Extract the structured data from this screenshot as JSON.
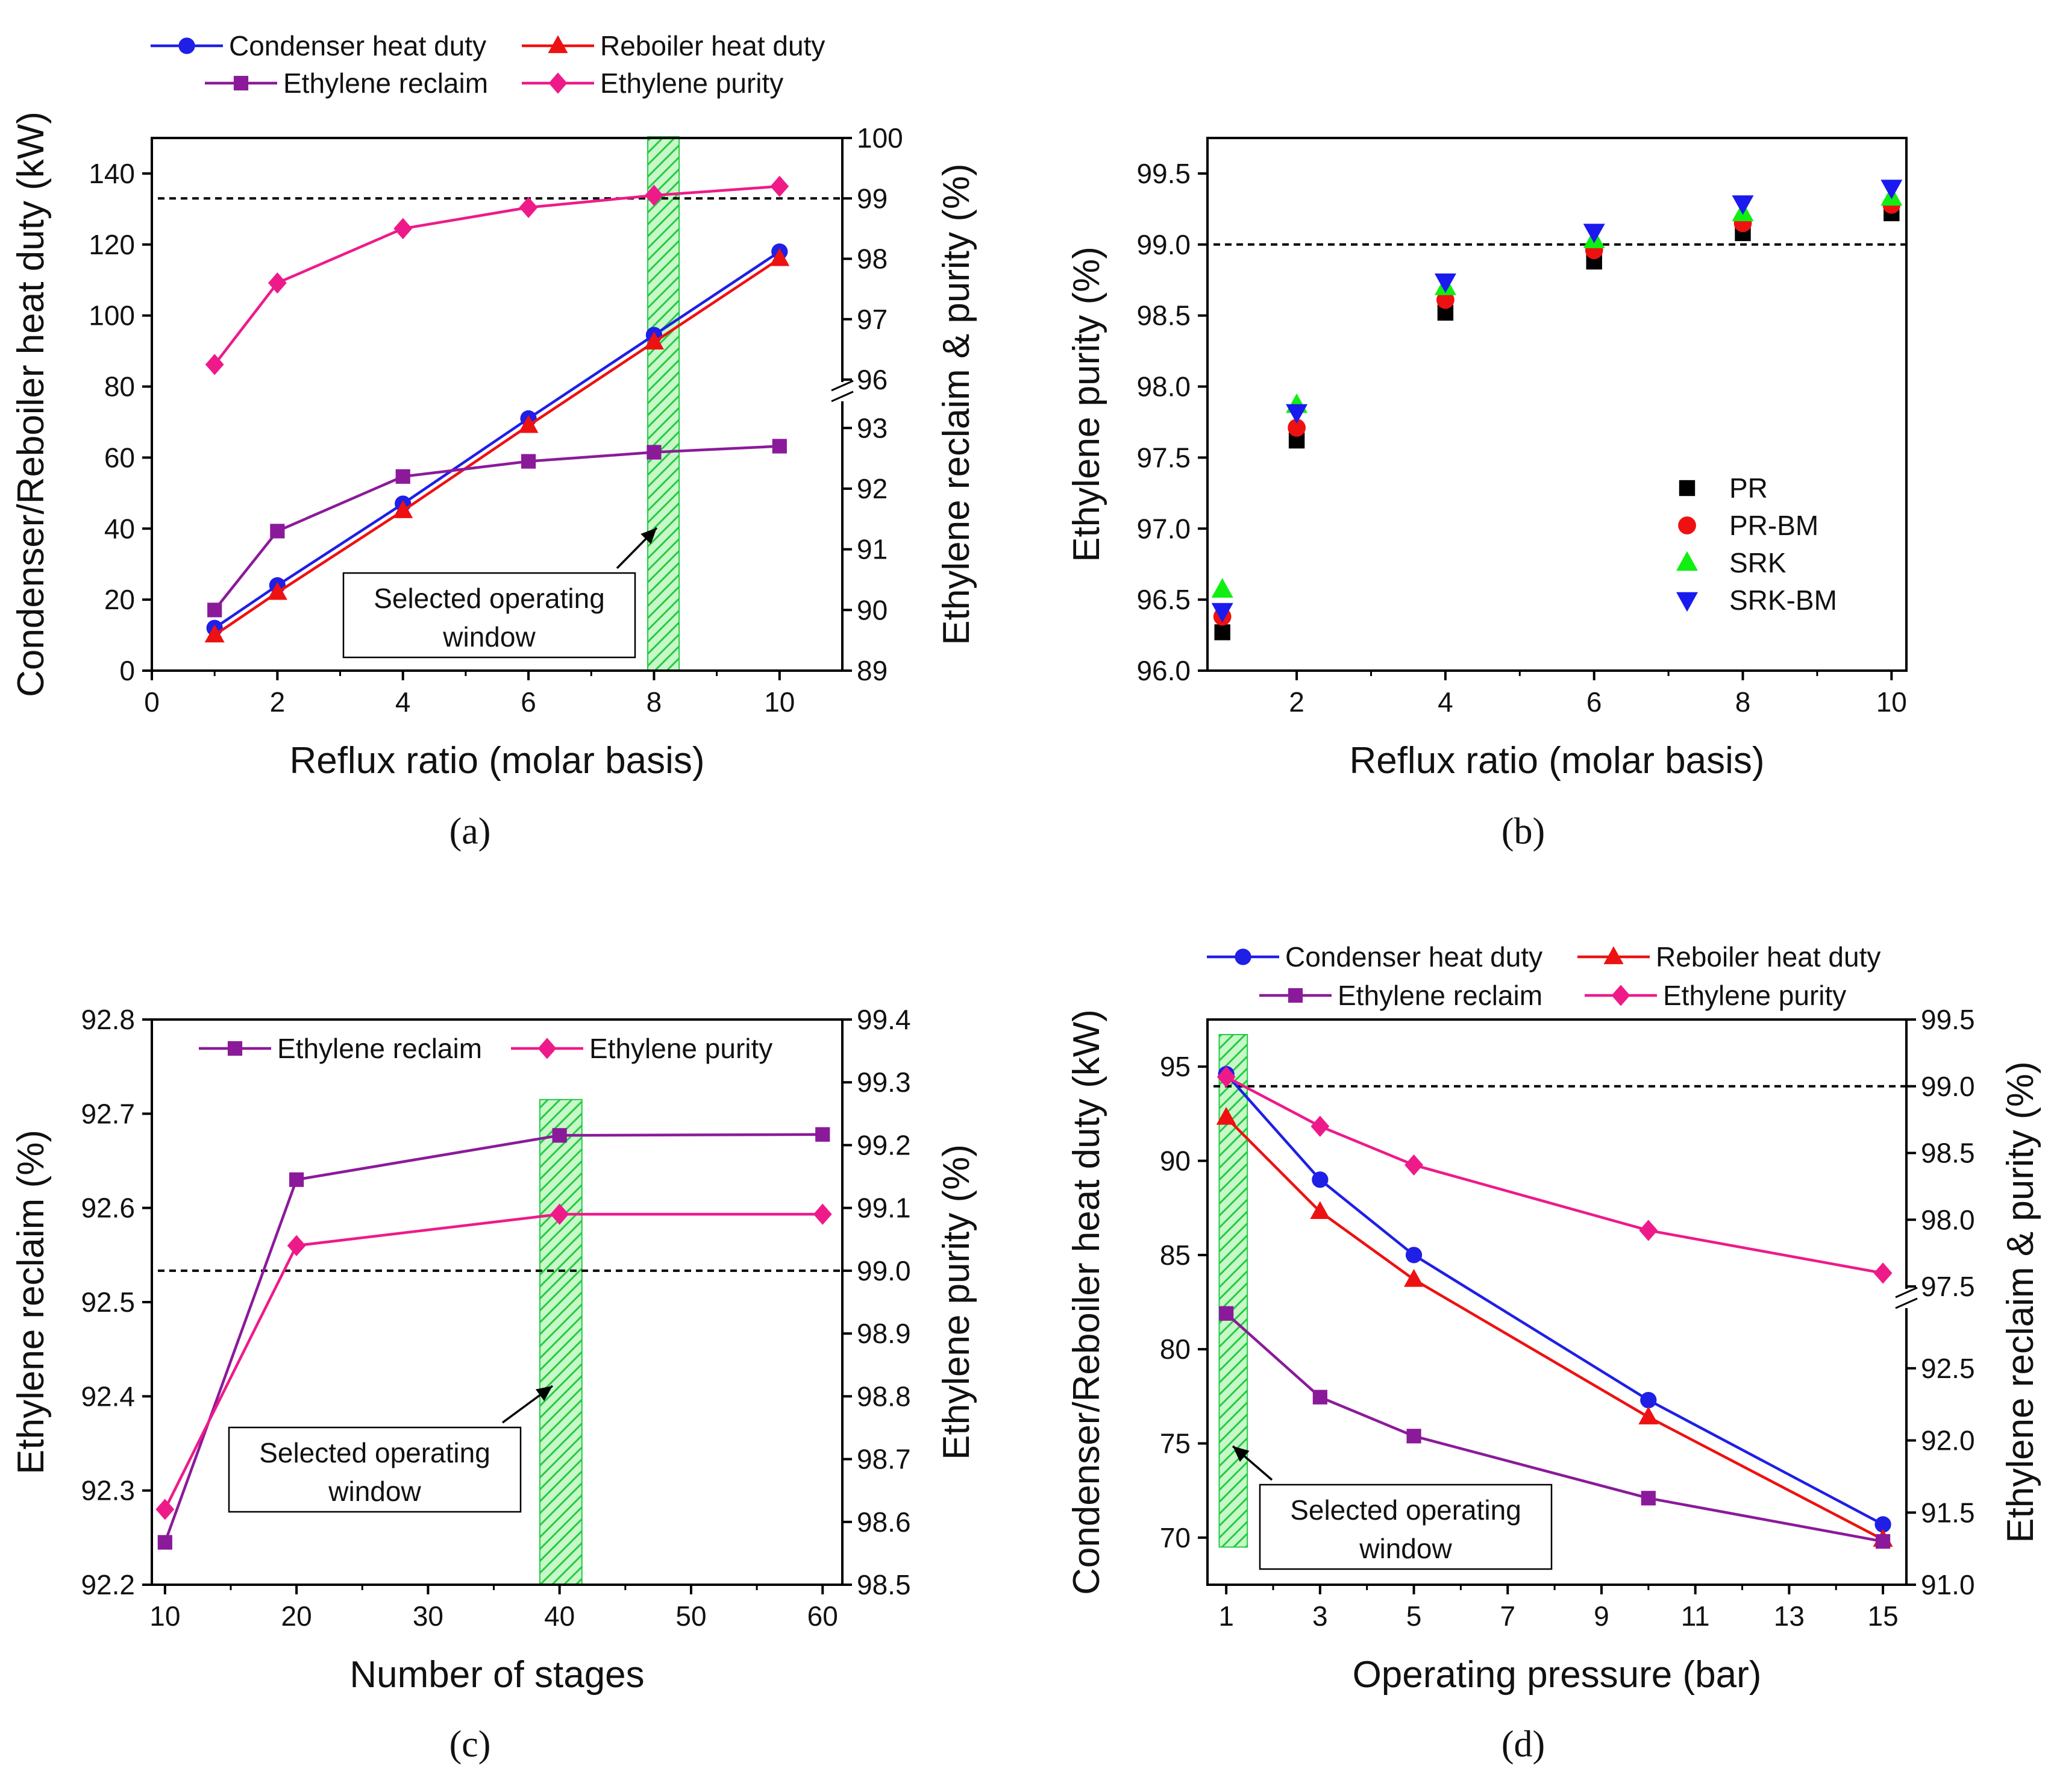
{
  "chart_data": [
    {
      "id": "a",
      "panel_label": "(a)",
      "type": "line",
      "xlabel": "Reflux ratio (molar basis)",
      "ylabel": "Condenser/Reboiler heat duty (kW)",
      "y2label": "Ethylene reclaim & purity (%)",
      "xlim": [
        0,
        11
      ],
      "xticks": [
        0,
        2,
        4,
        6,
        8,
        10
      ],
      "ylim": [
        0,
        150
      ],
      "yticks": [
        0,
        20,
        40,
        60,
        80,
        100,
        120,
        140
      ],
      "y2_break": true,
      "y2_lower": {
        "range": [
          89,
          93.4
        ],
        "ticks": [
          89,
          90,
          91,
          92,
          93
        ]
      },
      "y2_upper": {
        "range": [
          96,
          100
        ],
        "ticks": [
          96,
          97,
          98,
          99,
          100
        ]
      },
      "reference_line": {
        "axis": "y2_upper",
        "value": 99
      },
      "highlight": {
        "x": [
          7.9,
          8.4
        ],
        "axis": "x"
      },
      "annotation": {
        "lines": [
          "Selected operating",
          "window"
        ]
      },
      "legend": [
        {
          "name": "Condenser heat duty",
          "color": "#1f1fe6",
          "marker": "circle"
        },
        {
          "name": "Reboiler heat duty",
          "color": "#ee1111",
          "marker": "triangle-up"
        },
        {
          "name": "Ethylene reclaim",
          "color": "#8b1a9a",
          "marker": "square"
        },
        {
          "name": "Ethylene purity",
          "color": "#ee1a8a",
          "marker": "diamond"
        }
      ],
      "series": [
        {
          "name": "Condenser heat duty",
          "axis": "y",
          "color": "#1f1fe6",
          "marker": "circle",
          "x": [
            1,
            2,
            4,
            6,
            8,
            10
          ],
          "values": [
            12,
            24,
            47,
            71,
            94.5,
            118
          ]
        },
        {
          "name": "Reboiler heat duty",
          "axis": "y",
          "color": "#ee1111",
          "marker": "triangle-up",
          "x": [
            1,
            2,
            4,
            6,
            8,
            10
          ],
          "values": [
            10,
            22,
            45,
            69,
            92.5,
            116
          ]
        },
        {
          "name": "Ethylene reclaim",
          "axis": "y2_lower",
          "color": "#8b1a9a",
          "marker": "square",
          "x": [
            1,
            2,
            4,
            6,
            8,
            10
          ],
          "values": [
            90.0,
            91.3,
            92.2,
            92.45,
            92.6,
            92.7
          ]
        },
        {
          "name": "Ethylene purity",
          "axis": "y2_upper",
          "color": "#ee1a8a",
          "marker": "diamond",
          "x": [
            1,
            2,
            4,
            6,
            8,
            10
          ],
          "values": [
            96.25,
            97.6,
            98.5,
            98.85,
            99.05,
            99.2
          ]
        }
      ]
    },
    {
      "id": "b",
      "panel_label": "(b)",
      "type": "scatter",
      "xlabel": "Reflux ratio (molar basis)",
      "ylabel": "Ethylene purity (%)",
      "xlim": [
        0.8,
        10.2
      ],
      "xticks": [
        2,
        4,
        6,
        8,
        10
      ],
      "ylim": [
        96.0,
        99.75
      ],
      "yticks": [
        96.0,
        96.5,
        97.0,
        97.5,
        98.0,
        98.5,
        99.0,
        99.5
      ],
      "reference_line": {
        "axis": "y",
        "value": 99.0
      },
      "legend": [
        {
          "name": "PR",
          "color": "#000000",
          "marker": "square"
        },
        {
          "name": "PR-BM",
          "color": "#ee1111",
          "marker": "circle"
        },
        {
          "name": "SRK",
          "color": "#11ee11",
          "marker": "triangle-up"
        },
        {
          "name": "SRK-BM",
          "color": "#1a1aee",
          "marker": "triangle-down"
        }
      ],
      "series": [
        {
          "name": "PR",
          "color": "#000000",
          "marker": "square",
          "x": [
            1,
            2,
            4,
            6,
            8,
            10
          ],
          "values": [
            96.27,
            97.62,
            98.52,
            98.88,
            99.08,
            99.22
          ]
        },
        {
          "name": "PR-BM",
          "color": "#ee1111",
          "marker": "circle",
          "x": [
            1,
            2,
            4,
            6,
            8,
            10
          ],
          "values": [
            96.38,
            97.71,
            98.61,
            98.96,
            99.15,
            99.28
          ]
        },
        {
          "name": "SRK",
          "color": "#11ee11",
          "marker": "triangle-up",
          "x": [
            1,
            2,
            4,
            6,
            8,
            10
          ],
          "values": [
            96.57,
            97.87,
            98.7,
            99.03,
            99.22,
            99.33
          ]
        },
        {
          "name": "SRK-BM",
          "color": "#1a1aee",
          "marker": "triangle-down",
          "x": [
            1,
            2,
            4,
            6,
            8,
            10
          ],
          "values": [
            96.42,
            97.82,
            98.74,
            99.09,
            99.29,
            99.4
          ]
        }
      ]
    },
    {
      "id": "c",
      "panel_label": "(c)",
      "type": "line",
      "xlabel": "Number of stages",
      "ylabel": "Ethylene reclaim (%)",
      "y2label": "Ethylene purity (%)",
      "xlim": [
        9,
        61.5
      ],
      "xticks": [
        10,
        20,
        30,
        40,
        50,
        60
      ],
      "ylim": [
        92.2,
        92.8
      ],
      "yticks": [
        92.2,
        92.3,
        92.4,
        92.5,
        92.6,
        92.7,
        92.8
      ],
      "y2lim": [
        98.5,
        99.4
      ],
      "y2ticks": [
        98.5,
        98.6,
        98.7,
        98.8,
        98.9,
        99.0,
        99.1,
        99.2,
        99.3,
        99.4
      ],
      "reference_line": {
        "axis": "y2",
        "value": 99.0
      },
      "highlight": {
        "x": [
          38.5,
          41.7
        ],
        "y": [
          92.2,
          92.715
        ]
      },
      "annotation": {
        "lines": [
          "Selected operating",
          "window"
        ]
      },
      "legend": [
        {
          "name": "Ethylene reclaim",
          "color": "#8b1a9a",
          "marker": "square"
        },
        {
          "name": "Ethylene purity",
          "color": "#ee1a8a",
          "marker": "diamond"
        }
      ],
      "series": [
        {
          "name": "Ethylene reclaim",
          "axis": "y",
          "color": "#8b1a9a",
          "marker": "square",
          "x": [
            10,
            20,
            40,
            60
          ],
          "values": [
            92.245,
            92.63,
            92.677,
            92.678
          ]
        },
        {
          "name": "Ethylene purity",
          "axis": "y2",
          "color": "#ee1a8a",
          "marker": "diamond",
          "x": [
            10,
            20,
            40,
            60
          ],
          "values": [
            98.62,
            99.04,
            99.09,
            99.09
          ]
        }
      ]
    },
    {
      "id": "d",
      "panel_label": "(d)",
      "type": "line",
      "xlabel": "Operating pressure (bar)",
      "ylabel": "Condenser/Reboiler heat duty (kW)",
      "y2label": "Ethylene reclaim & purity (%)",
      "xlim": [
        0.6,
        15.5
      ],
      "xticks": [
        1,
        3,
        5,
        7,
        9,
        11,
        13,
        15
      ],
      "ylim": [
        67.5,
        97.5
      ],
      "yticks": [
        70,
        75,
        80,
        85,
        90,
        95
      ],
      "y2_break": true,
      "y2_lower": {
        "range": [
          91.0,
          92.9
        ],
        "ticks": [
          91.0,
          91.5,
          92.0,
          92.5
        ]
      },
      "y2_upper": {
        "range": [
          97.5,
          99.5
        ],
        "ticks": [
          97.5,
          98.0,
          98.5,
          99.0,
          99.5
        ]
      },
      "reference_line": {
        "axis": "y2_upper",
        "value": 99.0
      },
      "highlight": {
        "x": [
          0.85,
          1.45
        ],
        "y": [
          69.5,
          96.7
        ]
      },
      "annotation": {
        "lines": [
          "Selected operating",
          "window"
        ]
      },
      "legend": [
        {
          "name": "Condenser heat duty",
          "color": "#1f1fe6",
          "marker": "circle"
        },
        {
          "name": "Reboiler heat duty",
          "color": "#ee1111",
          "marker": "triangle-up"
        },
        {
          "name": "Ethylene reclaim",
          "color": "#8b1a9a",
          "marker": "square"
        },
        {
          "name": "Ethylene purity",
          "color": "#ee1a8a",
          "marker": "diamond"
        }
      ],
      "series": [
        {
          "name": "Condenser heat duty",
          "axis": "y",
          "color": "#1f1fe6",
          "marker": "circle",
          "x": [
            1,
            3,
            5,
            10,
            15
          ],
          "values": [
            94.6,
            89.0,
            85.0,
            77.3,
            70.7
          ]
        },
        {
          "name": "Reboiler heat duty",
          "axis": "y",
          "color": "#ee1111",
          "marker": "triangle-up",
          "x": [
            1,
            3,
            5,
            10,
            15
          ],
          "values": [
            92.3,
            87.3,
            83.7,
            76.4,
            69.9
          ]
        },
        {
          "name": "Ethylene reclaim",
          "axis": "y2_lower",
          "color": "#8b1a9a",
          "marker": "square",
          "x": [
            1,
            3,
            5,
            10,
            15
          ],
          "values": [
            92.88,
            92.3,
            92.03,
            91.6,
            91.3
          ]
        },
        {
          "name": "Ethylene purity",
          "axis": "y2_upper",
          "color": "#ee1a8a",
          "marker": "diamond",
          "x": [
            1,
            3,
            5,
            10,
            15
          ],
          "values": [
            99.07,
            98.7,
            98.41,
            97.92,
            97.6
          ]
        }
      ]
    }
  ]
}
